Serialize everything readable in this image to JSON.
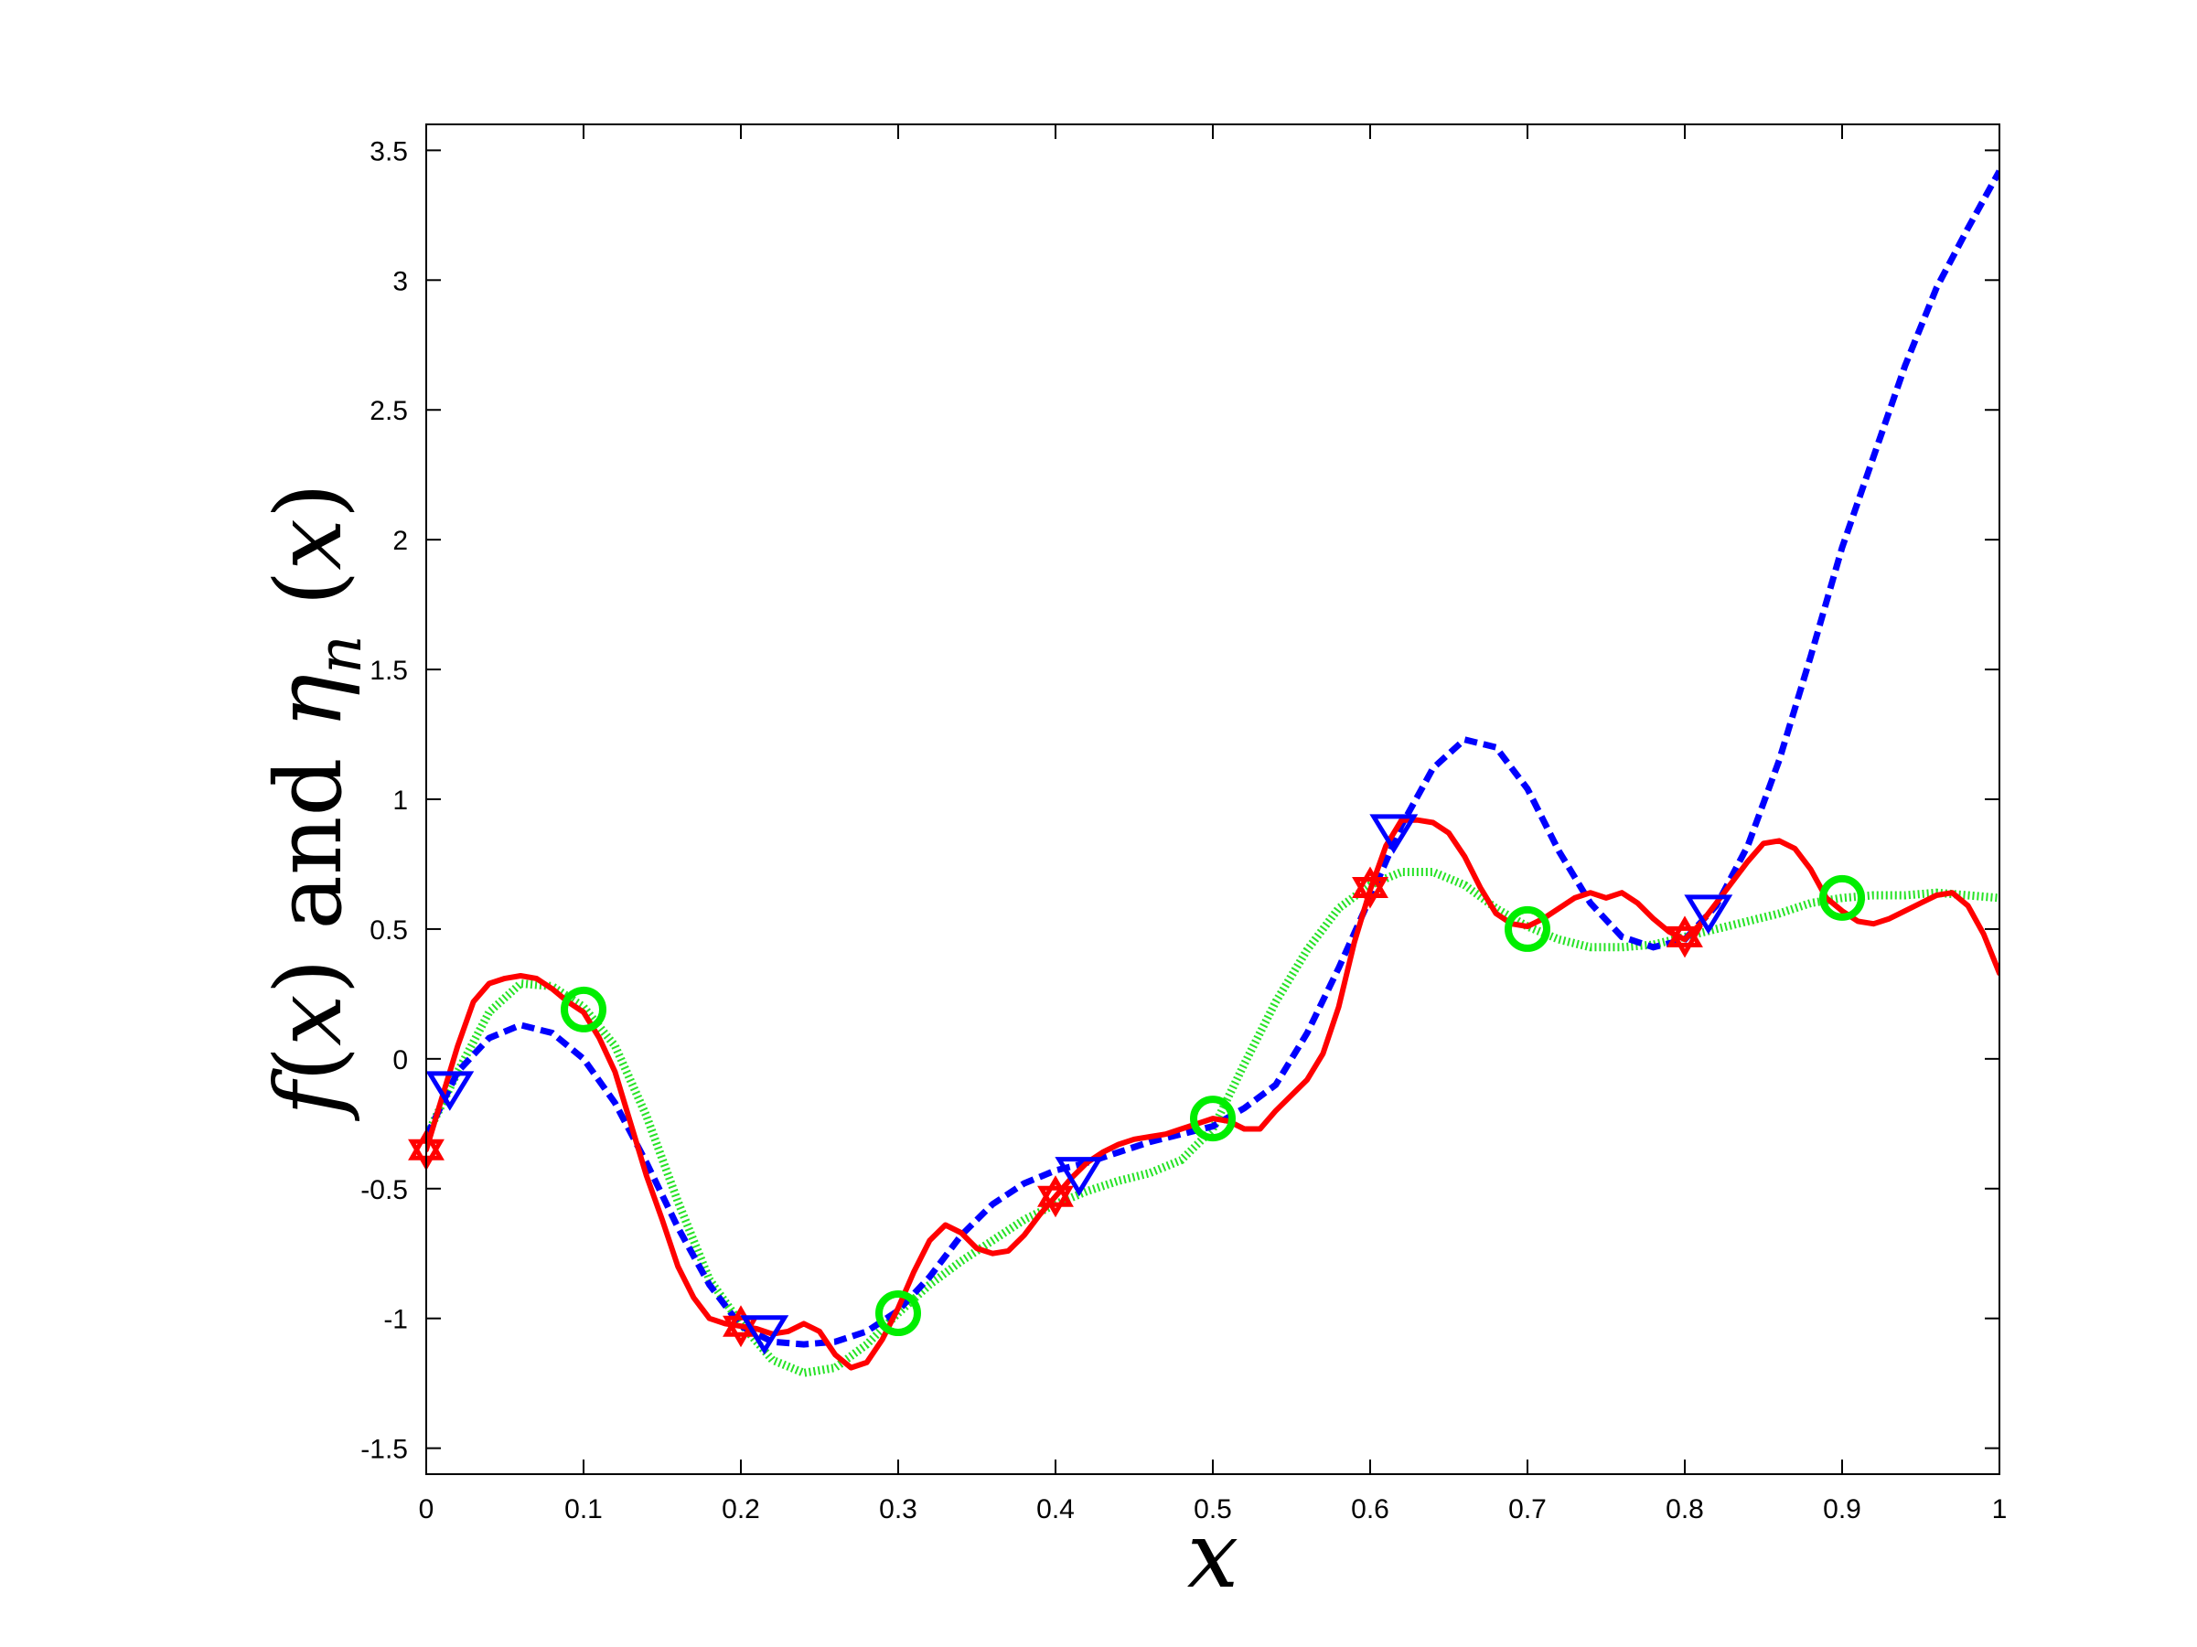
{
  "chart_data": {
    "type": "line",
    "title": "",
    "xlabel": "x",
    "ylabel": {
      "parts": [
        "f",
        "(",
        "x",
        ") and ",
        "η",
        "n",
        " (",
        "x",
        ")"
      ]
    },
    "xlim": [
      0,
      1
    ],
    "ylim": [
      -1.6,
      3.6
    ],
    "xticks": [
      0,
      0.1,
      0.2,
      0.3,
      0.4,
      0.5,
      0.6,
      0.7,
      0.8,
      0.9,
      1
    ],
    "xtick_labels": [
      "0",
      "0.1",
      "0.2",
      "0.3",
      "0.4",
      "0.5",
      "0.6",
      "0.7",
      "0.8",
      "0.9",
      "1"
    ],
    "yticks": [
      -1.5,
      -1,
      -0.5,
      0,
      0.5,
      1,
      1.5,
      2,
      2.5,
      3,
      3.5
    ],
    "ytick_labels": [
      "-1.5",
      "-1",
      "-0.5",
      "0",
      "0.5",
      "1",
      "1.5",
      "2",
      "2.5",
      "3",
      "3.5"
    ],
    "grid": false,
    "legend": "none",
    "series": [
      {
        "color": "#ff0000",
        "line_style": "solid",
        "x": [
          0,
          0.01,
          0.02,
          0.03,
          0.04,
          0.05,
          0.06,
          0.07,
          0.08,
          0.09,
          0.1,
          0.11,
          0.12,
          0.13,
          0.14,
          0.15,
          0.16,
          0.17,
          0.18,
          0.19,
          0.2,
          0.21,
          0.22,
          0.23,
          0.24,
          0.25,
          0.26,
          0.27,
          0.28,
          0.29,
          0.3,
          0.31,
          0.32,
          0.33,
          0.34,
          0.35,
          0.36,
          0.37,
          0.38,
          0.39,
          0.4,
          0.41,
          0.42,
          0.43,
          0.44,
          0.45,
          0.46,
          0.47,
          0.48,
          0.49,
          0.5,
          0.51,
          0.52,
          0.53,
          0.54,
          0.55,
          0.56,
          0.57,
          0.58,
          0.59,
          0.6,
          0.61,
          0.62,
          0.63,
          0.64,
          0.65,
          0.66,
          0.67,
          0.68,
          0.69,
          0.7,
          0.71,
          0.72,
          0.73,
          0.74,
          0.75,
          0.76,
          0.77,
          0.78,
          0.79,
          0.8,
          0.81,
          0.82,
          0.83,
          0.84,
          0.85,
          0.86,
          0.87,
          0.88,
          0.89,
          0.9,
          0.91,
          0.92,
          0.93,
          0.94,
          0.95,
          0.96,
          0.97,
          0.98,
          0.99,
          1
        ],
        "y": [
          -0.35,
          -0.15,
          0.05,
          0.22,
          0.29,
          0.31,
          0.32,
          0.31,
          0.27,
          0.22,
          0.18,
          0.08,
          -0.05,
          -0.25,
          -0.45,
          -0.62,
          -0.8,
          -0.92,
          -1.0,
          -1.02,
          -1.03,
          -1.04,
          -1.06,
          -1.05,
          -1.02,
          -1.05,
          -1.14,
          -1.19,
          -1.17,
          -1.08,
          -0.96,
          -0.82,
          -0.7,
          -0.64,
          -0.67,
          -0.73,
          -0.75,
          -0.74,
          -0.68,
          -0.6,
          -0.53,
          -0.46,
          -0.4,
          -0.36,
          -0.33,
          -0.31,
          -0.3,
          -0.29,
          -0.27,
          -0.25,
          -0.23,
          -0.24,
          -0.27,
          -0.27,
          -0.2,
          -0.14,
          -0.08,
          0.02,
          0.2,
          0.45,
          0.65,
          0.82,
          0.92,
          0.92,
          0.91,
          0.87,
          0.78,
          0.66,
          0.56,
          0.52,
          0.51,
          0.54,
          0.58,
          0.62,
          0.64,
          0.62,
          0.64,
          0.6,
          0.54,
          0.49,
          0.46,
          0.52,
          0.6,
          0.68,
          0.76,
          0.83,
          0.84,
          0.81,
          0.73,
          0.62,
          0.57,
          0.53,
          0.52,
          0.54,
          0.57,
          0.6,
          0.63,
          0.64,
          0.59,
          0.48,
          0.33
        ]
      },
      {
        "color": "#0000ff",
        "line_style": "dashed",
        "x": [
          0,
          0.02,
          0.04,
          0.06,
          0.08,
          0.1,
          0.12,
          0.14,
          0.16,
          0.18,
          0.2,
          0.22,
          0.24,
          0.26,
          0.28,
          0.3,
          0.32,
          0.34,
          0.36,
          0.38,
          0.4,
          0.42,
          0.44,
          0.46,
          0.48,
          0.5,
          0.52,
          0.54,
          0.56,
          0.58,
          0.6,
          0.62,
          0.64,
          0.66,
          0.68,
          0.7,
          0.72,
          0.74,
          0.76,
          0.78,
          0.8,
          0.82,
          0.84,
          0.86,
          0.88,
          0.9,
          0.92,
          0.94,
          0.96,
          0.98,
          1
        ],
        "y": [
          -0.3,
          -0.05,
          0.08,
          0.13,
          0.1,
          0.0,
          -0.17,
          -0.4,
          -0.65,
          -0.87,
          -1.03,
          -1.09,
          -1.1,
          -1.09,
          -1.05,
          -0.97,
          -0.84,
          -0.68,
          -0.56,
          -0.48,
          -0.43,
          -0.4,
          -0.36,
          -0.32,
          -0.29,
          -0.26,
          -0.19,
          -0.1,
          0.1,
          0.35,
          0.62,
          0.9,
          1.12,
          1.23,
          1.2,
          1.04,
          0.8,
          0.6,
          0.47,
          0.43,
          0.46,
          0.59,
          0.82,
          1.15,
          1.55,
          1.97,
          2.32,
          2.67,
          2.97,
          3.2,
          3.42
        ]
      },
      {
        "color": "#00dd00",
        "line_style": "dotted",
        "x": [
          0,
          0.02,
          0.04,
          0.06,
          0.08,
          0.1,
          0.12,
          0.14,
          0.16,
          0.18,
          0.2,
          0.22,
          0.24,
          0.26,
          0.28,
          0.3,
          0.32,
          0.34,
          0.36,
          0.38,
          0.4,
          0.42,
          0.44,
          0.46,
          0.48,
          0.5,
          0.52,
          0.54,
          0.56,
          0.58,
          0.6,
          0.62,
          0.64,
          0.66,
          0.68,
          0.7,
          0.72,
          0.74,
          0.76,
          0.78,
          0.8,
          0.82,
          0.84,
          0.86,
          0.88,
          0.9,
          0.92,
          0.94,
          0.96,
          0.98,
          1
        ],
        "y": [
          -0.3,
          -0.05,
          0.18,
          0.29,
          0.28,
          0.2,
          0.05,
          -0.22,
          -0.55,
          -0.85,
          -1.02,
          -1.16,
          -1.21,
          -1.19,
          -1.1,
          -0.98,
          -0.87,
          -0.78,
          -0.7,
          -0.62,
          -0.56,
          -0.51,
          -0.47,
          -0.44,
          -0.39,
          -0.27,
          -0.02,
          0.22,
          0.42,
          0.58,
          0.67,
          0.72,
          0.72,
          0.67,
          0.58,
          0.51,
          0.46,
          0.43,
          0.43,
          0.44,
          0.47,
          0.5,
          0.53,
          0.56,
          0.6,
          0.62,
          0.63,
          0.63,
          0.64,
          0.63,
          0.62
        ]
      }
    ],
    "markers": [
      {
        "shape": "hexagram",
        "color": "#ff0000",
        "points": [
          [
            0,
            -0.35
          ],
          [
            0.2,
            -1.03
          ],
          [
            0.4,
            -0.53
          ],
          [
            0.6,
            0.66
          ],
          [
            0.8,
            0.47
          ]
        ]
      },
      {
        "shape": "triangle-down",
        "color": "#0000ff",
        "points": [
          [
            0.015,
            -0.12
          ],
          [
            0.215,
            -1.06
          ],
          [
            0.415,
            -0.45
          ],
          [
            0.615,
            0.87
          ],
          [
            0.815,
            0.56
          ]
        ]
      },
      {
        "shape": "circle",
        "color": "#00ee00",
        "points": [
          [
            0.1,
            0.19
          ],
          [
            0.3,
            -0.98
          ],
          [
            0.5,
            -0.23
          ],
          [
            0.7,
            0.5
          ],
          [
            0.9,
            0.62
          ]
        ]
      }
    ]
  }
}
